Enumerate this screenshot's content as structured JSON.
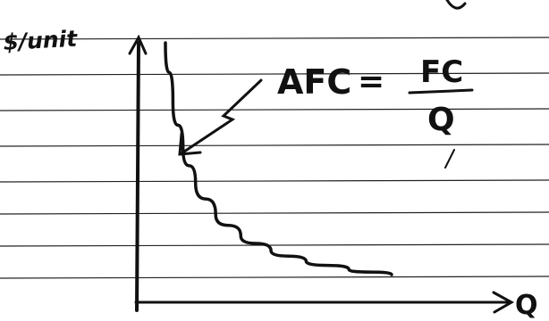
{
  "chart_data": {
    "type": "line",
    "ylabel": "$/unit",
    "xlabel": "Q",
    "series": [
      {
        "name": "AFC",
        "x": [
          1,
          1.3,
          1.7,
          2.2,
          3,
          4,
          5.2,
          6.6,
          8.3,
          10
        ],
        "y": [
          10,
          7.7,
          5.9,
          4.55,
          3.33,
          2.5,
          1.92,
          1.52,
          1.2,
          1
        ]
      }
    ],
    "annotation": {
      "label": "AFC",
      "equals": "=",
      "numerator": "FC",
      "denominator": "Q"
    },
    "xlim": [
      0,
      10
    ],
    "ylim": [
      0,
      10
    ],
    "grid": true,
    "grid_style": "ruled-paper"
  }
}
